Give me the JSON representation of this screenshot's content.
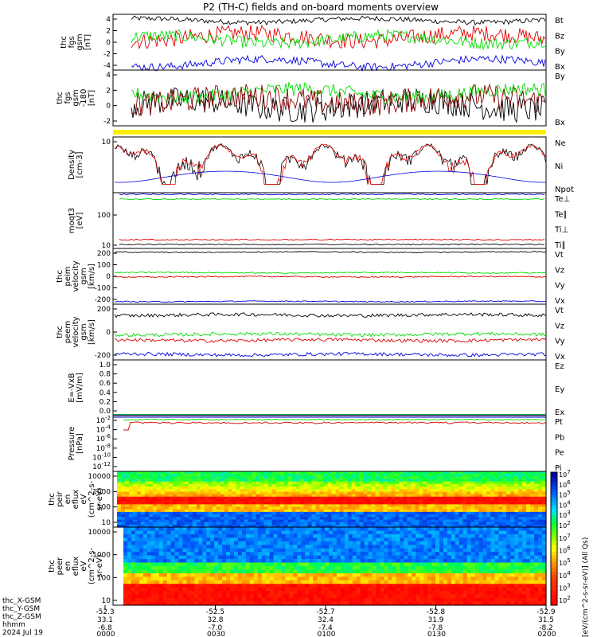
{
  "title": "P2 (TH-C) fields and on-board moments overview",
  "chart_data": [
    {
      "type": "line",
      "panel": "fgs",
      "ylabel": [
        "thc",
        "fgs",
        "gsm",
        "[nT]"
      ],
      "yticks": [
        "4",
        "2",
        "0",
        "-2",
        "-4"
      ],
      "ylim": [
        -5,
        6
      ],
      "series": [
        {
          "name": "Bt",
          "color": "#000000",
          "level": 4.8,
          "noise": 0.5
        },
        {
          "name": "Bz",
          "color": "#e00000",
          "level": 1.5,
          "noise": 1.6
        },
        {
          "name": "By",
          "color": "#00dd00",
          "level": 1.0,
          "noise": 1.2
        },
        {
          "name": "Bx",
          "color": "#0000e0",
          "level": -3.6,
          "noise": 0.8
        }
      ]
    },
    {
      "type": "line",
      "panel": "fgs_-180",
      "ylabel": [
        "thc",
        "fgs",
        "gsm",
        "-180",
        "[nT]"
      ],
      "yticks": [
        "4",
        "2",
        "0",
        "-2"
      ],
      "ylim": [
        -3.5,
        4.5
      ],
      "series": [
        {
          "name": "By",
          "color": "#00dd00",
          "level": 1.2,
          "noise": 1.0
        },
        {
          "name": "Bx",
          "color": "#8b0000",
          "level": 0.2,
          "noise": 1.8
        }
      ],
      "extra_black": true
    },
    {
      "type": "line",
      "panel": "density",
      "ylabel": [
        "Density",
        "[cm-3]"
      ],
      "yticks": [
        "10"
      ],
      "ylim": [
        0.5,
        12
      ],
      "series": [
        {
          "name": "Ne",
          "color": "#e00000"
        },
        {
          "name": "Ni",
          "color": "#000000"
        },
        {
          "name": "Npot",
          "color": "#0000e0"
        }
      ]
    },
    {
      "type": "line",
      "panel": "temperature",
      "ylabel": [
        "moqt3",
        "[eV]"
      ],
      "yticks": [
        "100",
        "10"
      ],
      "series": [
        {
          "name": "Te⊥",
          "color": "#e00000"
        },
        {
          "name": "Te∥",
          "color": "#000000"
        },
        {
          "name": "Ti⊥",
          "color": "#0000e0"
        },
        {
          "name": "Ti∥",
          "color": "#00dd00"
        }
      ]
    },
    {
      "type": "line",
      "panel": "peim_velocity",
      "ylabel": [
        "thc",
        "peim",
        "velocity",
        "gsm",
        "[km/s]"
      ],
      "yticks": [
        "200",
        "100",
        "0",
        "-100",
        "-200"
      ],
      "ylim": [
        -300,
        310
      ],
      "series": [
        {
          "name": "Vt",
          "color": "#000000",
          "value": 270
        },
        {
          "name": "Vz",
          "color": "#e00000",
          "value": 0
        },
        {
          "name": "Vy",
          "color": "#00dd00",
          "value": 45
        },
        {
          "name": "Vx",
          "color": "#0000e0",
          "value": -270
        }
      ]
    },
    {
      "type": "line",
      "panel": "peem_velocity",
      "ylabel": [
        "thc",
        "peem",
        "velocity",
        "gsm",
        "[km/s]"
      ],
      "yticks": [
        "200",
        "0",
        "-200"
      ],
      "ylim": [
        -300,
        420
      ],
      "series": [
        {
          "name": "Vt",
          "color": "#000000",
          "value": 280
        },
        {
          "name": "Vz",
          "color": "#e00000",
          "value": -45
        },
        {
          "name": "Vy",
          "color": "#00dd00",
          "value": 30
        },
        {
          "name": "Vx",
          "color": "#0000e0",
          "value": -230
        }
      ]
    },
    {
      "type": "line",
      "panel": "efield",
      "ylabel": [
        "E=-VxB",
        "[mV/m]"
      ],
      "yticks": [
        "1.0",
        "0.8",
        "0.6",
        "0.4",
        "0.2",
        "0.0"
      ],
      "ylim": [
        -0.02,
        1.05
      ],
      "series": [
        {
          "name": "Ez",
          "color": "#e00000"
        },
        {
          "name": "Ey",
          "color": "#00dd00"
        },
        {
          "name": "Ex",
          "color": "#0000e0"
        }
      ]
    },
    {
      "type": "line",
      "panel": "pressure",
      "ylabel": [
        "Pressure",
        "[nPa]"
      ],
      "yticks": [
        "10^-2",
        "10^-4",
        "10^-6",
        "10^-8",
        "10^-10",
        "10^-12"
      ],
      "series": [
        {
          "name": "Pt",
          "color": "#000000"
        },
        {
          "name": "Pb",
          "color": "#e00000"
        },
        {
          "name": "Pe",
          "color": "#00dd00"
        },
        {
          "name": "Pi",
          "color": "#0000e0"
        }
      ]
    },
    {
      "type": "heatmap",
      "panel": "peir_en_eflux",
      "ylabel": [
        "thc",
        "peir",
        "en",
        "eflux",
        "eV",
        "(cm^2-s-",
        "sr-eV)"
      ],
      "yticks": [
        "10000",
        "1000",
        "100",
        "10"
      ]
    },
    {
      "type": "heatmap",
      "panel": "peer_en_eflux",
      "ylabel": [
        "thc",
        "peer",
        "en",
        "eflux",
        "eV",
        "(cm^2-s-",
        "sr-eV)"
      ],
      "yticks": [
        "10000",
        "1000",
        "100",
        "10"
      ]
    }
  ],
  "colorbar": {
    "label": "[eV/(cm^2-s-sr-eV)] (All Qs)",
    "labels_a": [
      "10^7",
      "10^6",
      "10^5",
      "10^4",
      "10^3",
      "10^2"
    ],
    "labels_b": [
      "10^7",
      "10^6",
      "10^5",
      "10^4",
      "10^3",
      "10^2"
    ]
  },
  "x_axis": {
    "row_labels": [
      "thc_X-GSM",
      "thc_Y-GSM",
      "thc_Z-GSM",
      "hhmm",
      "2024 Jul 19"
    ],
    "ticks": [
      {
        "x": "-52.3",
        "y": "33.1",
        "z": "-6.8",
        "hhmm": "0000"
      },
      {
        "x": "-52.5",
        "y": "32.8",
        "z": "-7.0",
        "hhmm": "0030"
      },
      {
        "x": "-52.7",
        "y": "32.4",
        "z": "-7.4",
        "hhmm": "0100"
      },
      {
        "x": "-52.8",
        "y": "31.9",
        "z": "-7.8",
        "hhmm": "0130"
      },
      {
        "x": "-52.9",
        "y": "31.5",
        "z": "-8.2",
        "hhmm": "0200"
      }
    ]
  }
}
